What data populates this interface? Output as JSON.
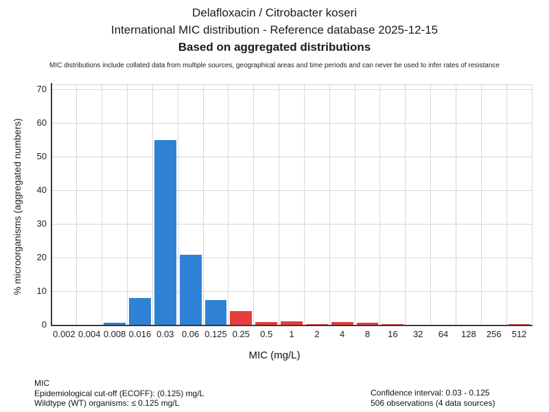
{
  "header": {
    "title_line1": "Delafloxacin / Citrobacter koseri",
    "title_line2": "International MIC distribution - Reference database 2025-12-15",
    "title_line3": "Based on aggregated distributions",
    "disclaimer": "MIC distributions include collated data from multiple sources, geographical areas and time periods and can never be used to infer rates of resistance"
  },
  "chart_data": {
    "type": "bar",
    "title": "Delafloxacin / Citrobacter koseri - International MIC distribution",
    "xlabel": "MIC (mg/L)",
    "ylabel": "% microorganisms (aggregated numbers)",
    "categories": [
      "0.002",
      "0.004",
      "0.008",
      "0.016",
      "0.03",
      "0.06",
      "0.125",
      "0.25",
      "0.5",
      "1",
      "2",
      "4",
      "8",
      "16",
      "32",
      "64",
      "128",
      "256",
      "512"
    ],
    "values": [
      0,
      0,
      0.8,
      8.1,
      55,
      21.1,
      7.5,
      4.3,
      1.0,
      1.2,
      0.4,
      1.1,
      0.9,
      0.4,
      0,
      0,
      0,
      0,
      0.4
    ],
    "yticks": [
      0,
      10,
      20,
      30,
      40,
      50,
      60,
      70
    ],
    "ylim": [
      0,
      71.4
    ],
    "grid": true,
    "legend": "none",
    "wildtype_color": "#2f81d5",
    "non_wildtype_color": "#e83b3b",
    "wildtype_last_category": "0.125",
    "grid_color": "#d8d8d8",
    "axis_color": "#3a3a3a"
  },
  "footer": {
    "left": [
      "MIC",
      "Epidemiological cut-off (ECOFF): (0.125) mg/L",
      "Wildtype (WT) organisms: ≤ 0.125 mg/L"
    ],
    "right": [
      "Confidence interval: 0.03 - 0.125",
      "506 observations (4 data sources)"
    ]
  }
}
